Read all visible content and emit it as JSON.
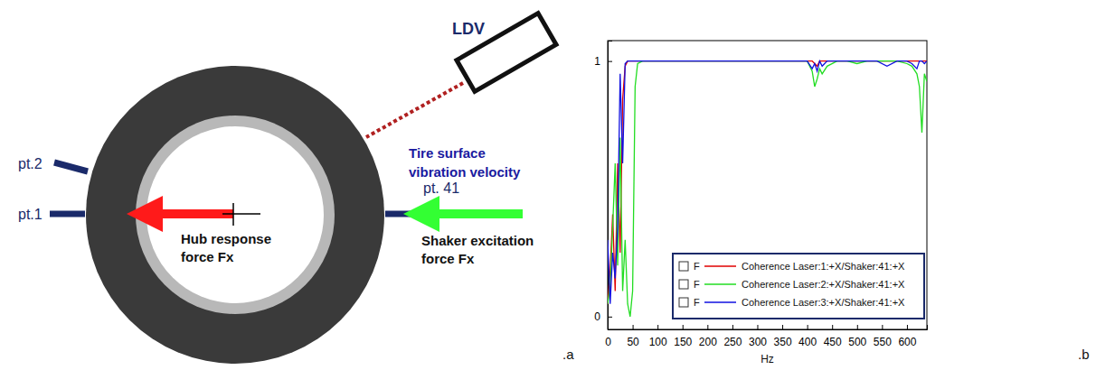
{
  "diagram": {
    "panel_label": ".a",
    "ldv": "LDV",
    "points": [
      "pt.1",
      "pt.2",
      "pt. 41"
    ],
    "tire_surface": [
      "Tire surface",
      "vibration velocity"
    ],
    "hub_force": [
      "Hub response",
      "force Fx"
    ],
    "shaker_force": [
      "Shaker excitation",
      "force Fx"
    ]
  },
  "chart_data": {
    "type": "line",
    "xlabel": "Hz",
    "annotations": [
      ".b",
      "F",
      "F",
      "F"
    ],
    "x": [
      0,
      5,
      10,
      15,
      20,
      25,
      30,
      35,
      40,
      45,
      50,
      55,
      60,
      70,
      80,
      90,
      100,
      120,
      140,
      160,
      180,
      200,
      220,
      240,
      260,
      280,
      300,
      320,
      340,
      360,
      380,
      400,
      410,
      415,
      420,
      425,
      430,
      440,
      460,
      480,
      500,
      520,
      540,
      560,
      580,
      600,
      610,
      620,
      625,
      630,
      635,
      640
    ],
    "series": [
      {
        "name": "Coherence Laser:1:+X/Shaker:41:+X",
        "color": "#e00000",
        "values": [
          0.05,
          0.18,
          0.4,
          0.1,
          0.6,
          0.25,
          0.85,
          0.98,
          1,
          1,
          1,
          1,
          1,
          1,
          1,
          1,
          1,
          1,
          1,
          1,
          1,
          1,
          1,
          1,
          1,
          1,
          1,
          1,
          1,
          1,
          1,
          1,
          1,
          0.99,
          0.98,
          1,
          1,
          1,
          1,
          1,
          1,
          1,
          1,
          1,
          1,
          1,
          1,
          1,
          1,
          1,
          1,
          1
        ]
      },
      {
        "name": "Coherence Laser:2:+X/Shaker:41:+X",
        "color": "#22dd22",
        "values": [
          0.05,
          0.12,
          0.35,
          0.6,
          0.2,
          0.7,
          0.1,
          0.3,
          0.05,
          0,
          0.1,
          0.9,
          0.99,
          1,
          1,
          1,
          1,
          1,
          1,
          1,
          1,
          1,
          1,
          1,
          1,
          1,
          1,
          1,
          1,
          1,
          1,
          1,
          0.96,
          0.9,
          0.93,
          0.97,
          0.95,
          0.98,
          1,
          1,
          0.99,
          1,
          1,
          1,
          1,
          0.99,
          0.98,
          0.95,
          0.9,
          0.72,
          0.95,
          0.92
        ]
      },
      {
        "name": "Coherence Laser:3:+X/Shaker:41:+X",
        "color": "#1010e0",
        "values": [
          0.3,
          0.05,
          0.25,
          0.15,
          0.35,
          0.95,
          0.6,
          0.99,
          1,
          1,
          1,
          1,
          1,
          1,
          1,
          1,
          1,
          1,
          1,
          1,
          1,
          1,
          1,
          1,
          1,
          1,
          1,
          1,
          1,
          1,
          1,
          1,
          0.97,
          0.99,
          0.96,
          1,
          0.98,
          1,
          1,
          1,
          1,
          1,
          1,
          0.98,
          1,
          1,
          0.99,
          0.97,
          1,
          1,
          0.99,
          1
        ]
      }
    ],
    "xlim": [
      0,
      640
    ],
    "xticks": [
      0,
      50,
      100,
      150,
      200,
      250,
      300,
      350,
      400,
      450,
      500,
      550,
      600
    ],
    "ylim": [
      -0.05,
      1.08
    ],
    "yticks": [
      0,
      1
    ],
    "legend": "lower right"
  }
}
